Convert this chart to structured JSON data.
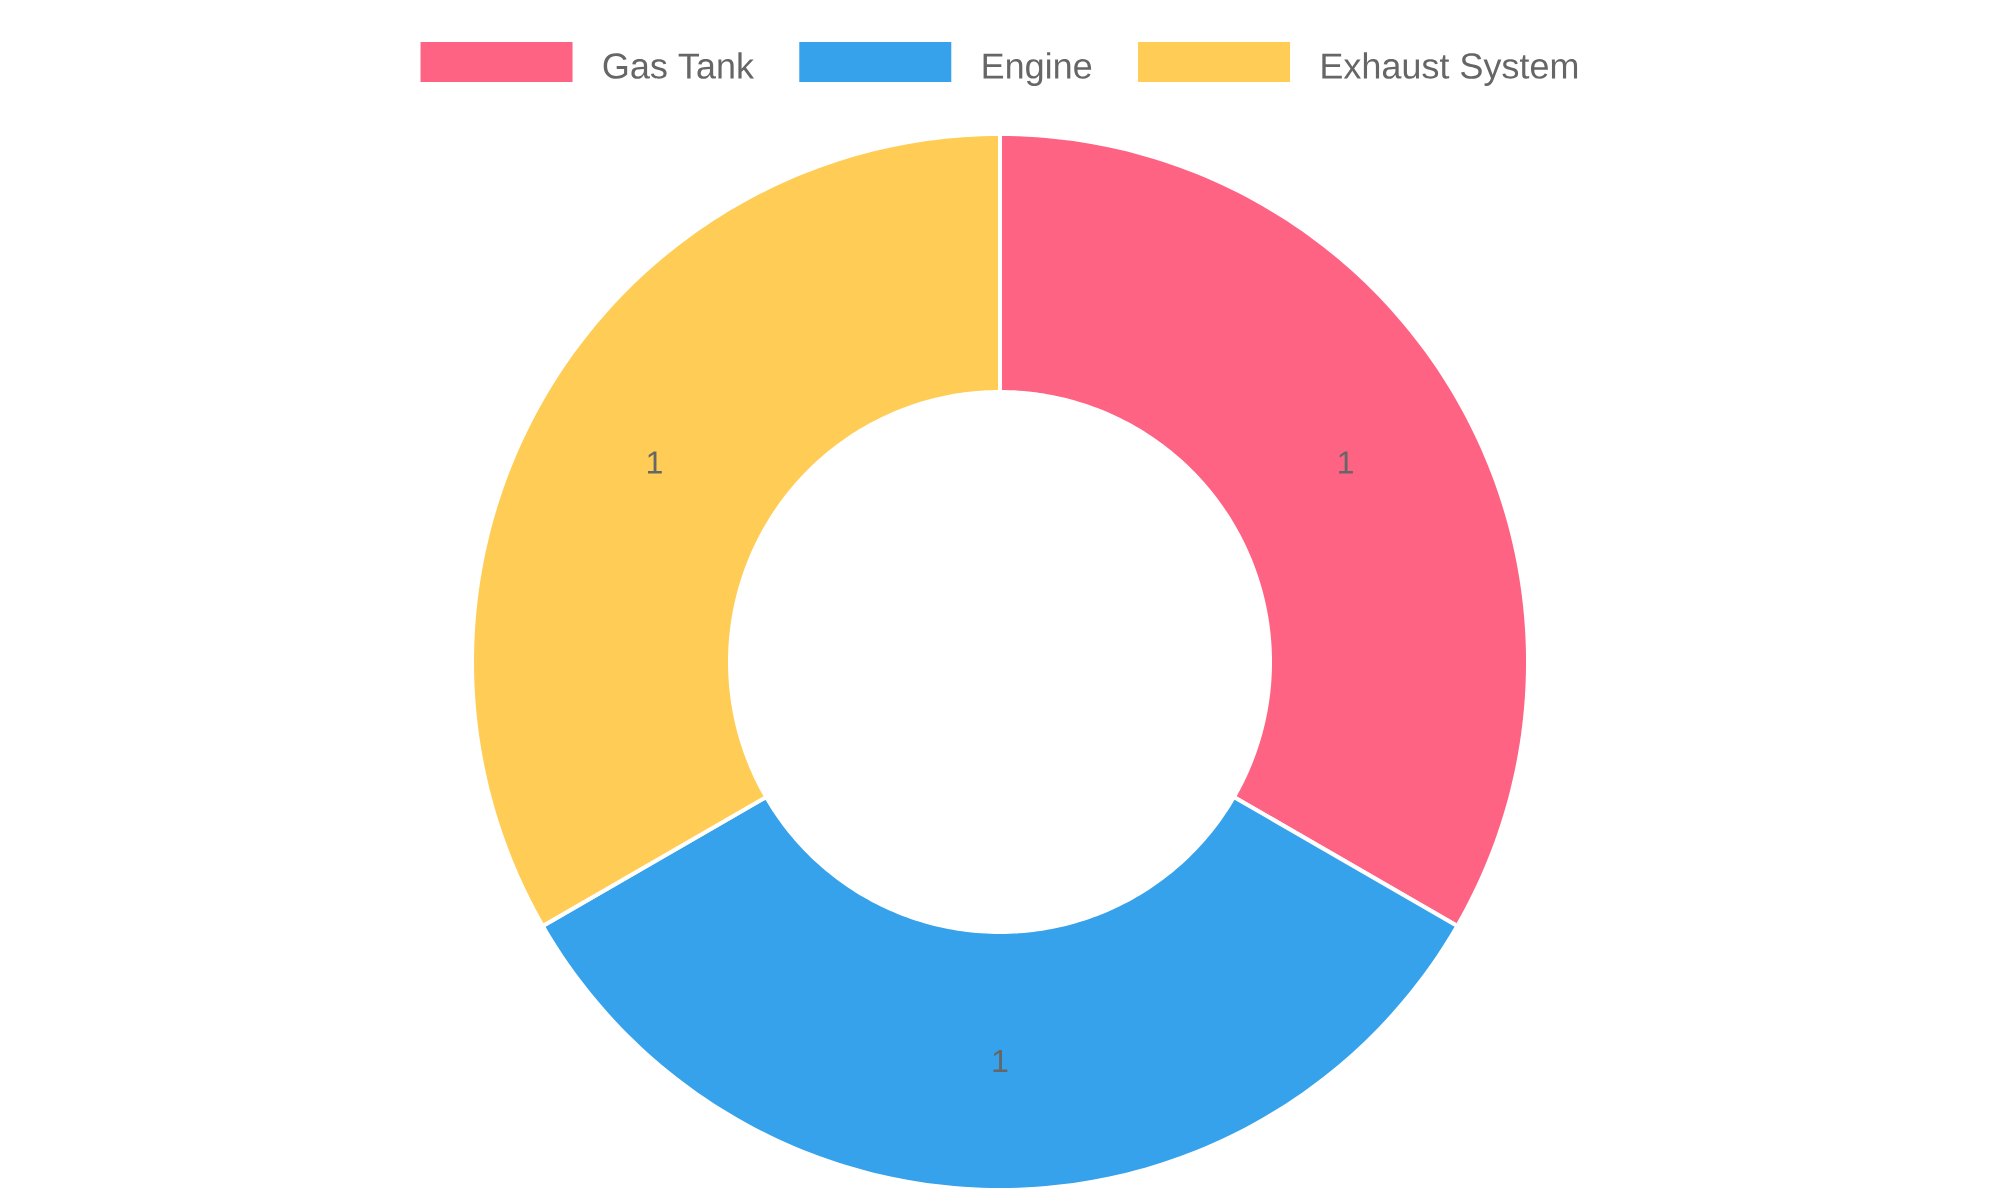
{
  "chart_data": {
    "type": "donut",
    "categories": [
      "Gas Tank",
      "Engine",
      "Exhaust System"
    ],
    "values": [
      1,
      1,
      1
    ],
    "colors": [
      "#ff6384",
      "#36a2eb",
      "#ffcd56"
    ],
    "data_labels": true,
    "legend": "top"
  }
}
